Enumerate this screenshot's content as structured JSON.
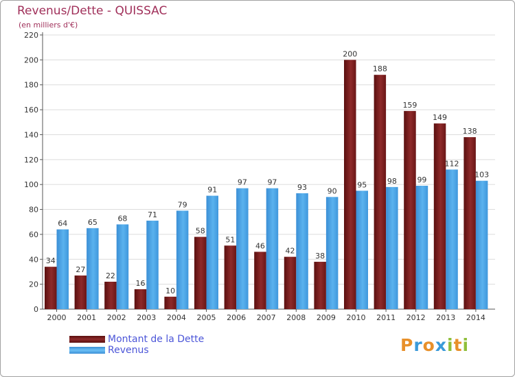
{
  "chart_data": {
    "type": "bar",
    "title": "Revenus/Dette - QUISSAC",
    "subtitle": "(en milliers d'€)",
    "categories": [
      "2000",
      "2001",
      "2002",
      "2003",
      "2004",
      "2005",
      "2006",
      "2007",
      "2008",
      "2009",
      "2010",
      "2011",
      "2012",
      "2013",
      "2014"
    ],
    "series": [
      {
        "name": "Montant de la Dette",
        "color": "#7a1c1c",
        "values": [
          34,
          27,
          22,
          16,
          10,
          58,
          51,
          46,
          42,
          38,
          200,
          188,
          159,
          149,
          138
        ]
      },
      {
        "name": "Revenus",
        "color": "#4da6e8",
        "values": [
          64,
          65,
          68,
          71,
          79,
          91,
          97,
          97,
          93,
          90,
          95,
          98,
          99,
          112,
          103
        ]
      }
    ],
    "ylim": [
      0,
      220
    ],
    "yticks": [
      "0",
      "20",
      "40",
      "60",
      "80",
      "100",
      "120",
      "140",
      "160",
      "180",
      "200",
      "220"
    ],
    "grid": true,
    "legend_position": "bottom-left"
  },
  "logo": {
    "letters": [
      "P",
      "r",
      "o",
      "x",
      "i",
      "t",
      "i"
    ],
    "colors": [
      "#e8902a",
      "#3a9ad9",
      "#e8902a",
      "#3a9ad9",
      "#8fbf3a",
      "#e8902a",
      "#8fbf3a"
    ]
  }
}
